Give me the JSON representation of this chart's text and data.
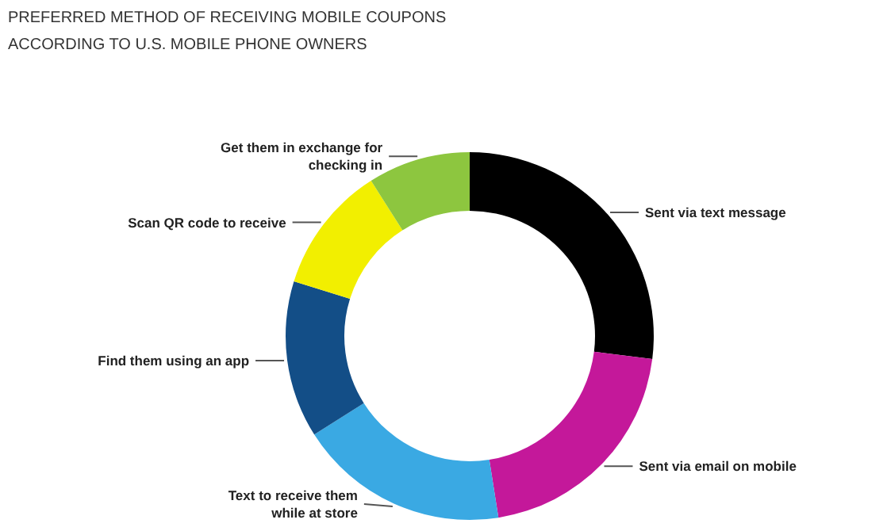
{
  "chart_data": {
    "type": "donut",
    "title": "PREFERRED METHOD OF RECEIVING MOBILE COUPONS ACCORDING TO U.S. MOBILE PHONE OWNERS",
    "categories": [
      "Sent via text message",
      "Sent via email on mobile",
      "Text to receive them while at store",
      "Find them using an app",
      "Scan QR code to receive",
      "Get them in exchange for checking in"
    ],
    "values": [
      27,
      20.5,
      18.5,
      13.8,
      11.2,
      9
    ],
    "colors": [
      "#000000",
      "#c4189a",
      "#3aa9e3",
      "#134e87",
      "#f2ef00",
      "#8dc63f"
    ]
  }
}
